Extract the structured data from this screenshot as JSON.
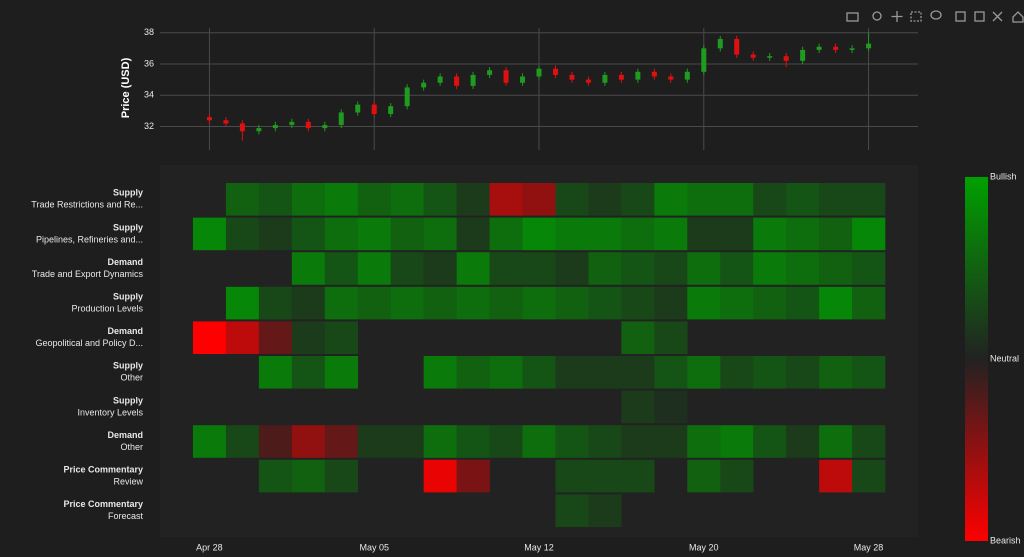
{
  "chart_data": [
    {
      "type": "candlestick",
      "y_label": "Price (USD)",
      "x": [
        0,
        0.5,
        1,
        1.5,
        2,
        2.5,
        3,
        3.5,
        4,
        4.5,
        5,
        5.5,
        6,
        6.5,
        7,
        7.5,
        8,
        8.5,
        9,
        9.5,
        10,
        10.5,
        11,
        11.5,
        12,
        12.5,
        13,
        13.5,
        14,
        14.5,
        15,
        15.5,
        16,
        16.5,
        17,
        17.5,
        18,
        18.5,
        19,
        19.5,
        20
      ],
      "open": [
        32.6,
        32.4,
        32.2,
        31.7,
        31.9,
        32.1,
        32.3,
        31.9,
        32.1,
        32.9,
        33.4,
        32.8,
        33.3,
        34.5,
        34.8,
        35.2,
        34.6,
        35.3,
        35.6,
        34.8,
        35.2,
        35.7,
        35.3,
        35.0,
        34.8,
        35.3,
        35.0,
        35.5,
        35.2,
        35.0,
        35.5,
        37.0,
        37.6,
        36.6,
        36.4,
        36.5,
        36.2,
        36.9,
        37.1,
        36.9,
        37.0
      ],
      "high": [
        32.8,
        32.6,
        32.4,
        32.1,
        32.3,
        32.5,
        32.5,
        32.3,
        33.1,
        33.6,
        33.6,
        33.5,
        34.7,
        35.0,
        35.4,
        35.4,
        35.5,
        35.8,
        35.8,
        35.4,
        35.9,
        35.9,
        35.5,
        35.2,
        35.5,
        35.5,
        35.7,
        35.7,
        35.4,
        35.7,
        37.2,
        37.8,
        37.8,
        36.8,
        36.7,
        36.7,
        37.1,
        37.3,
        37.3,
        37.2,
        38.0
      ],
      "low": [
        32.2,
        32.0,
        31.1,
        31.5,
        31.7,
        31.9,
        31.7,
        31.7,
        31.9,
        32.7,
        32.6,
        32.6,
        33.1,
        34.3,
        34.6,
        34.4,
        34.4,
        35.1,
        34.6,
        34.6,
        35.0,
        35.1,
        34.8,
        34.6,
        34.6,
        34.8,
        34.8,
        35.0,
        34.8,
        34.8,
        35.3,
        36.8,
        36.4,
        36.2,
        36.2,
        35.8,
        36.0,
        36.7,
        36.7,
        36.7,
        36.8
      ],
      "close": [
        32.4,
        32.2,
        31.7,
        31.9,
        32.1,
        32.3,
        31.9,
        32.1,
        32.9,
        33.4,
        32.8,
        33.3,
        34.5,
        34.8,
        35.2,
        34.6,
        35.3,
        35.6,
        34.8,
        35.2,
        35.7,
        35.3,
        35.0,
        34.8,
        35.3,
        35.0,
        35.5,
        35.2,
        35.0,
        35.5,
        37.0,
        37.6,
        36.6,
        36.4,
        36.5,
        36.2,
        36.9,
        37.1,
        36.9,
        37.0,
        37.3
      ],
      "increasing_color": "#1f9b1f",
      "decreasing_color": "#e01010",
      "xlim": [
        -1.5,
        21.5
      ],
      "ylim": [
        30.5,
        38.3
      ],
      "yticks": [
        32,
        34,
        36,
        38
      ],
      "grid": true
    },
    {
      "type": "heatmap",
      "x": [
        0,
        1,
        2,
        3,
        4,
        5,
        6,
        7,
        8,
        9,
        10,
        11,
        12,
        13,
        14,
        15,
        16,
        17,
        18,
        19,
        20
      ],
      "y": [
        [
          "Supply",
          "Trade Restrictions and Re..."
        ],
        [
          "Supply",
          "Pipelines, Refineries and..."
        ],
        [
          "Demand",
          "Trade and Export Dynamics"
        ],
        [
          "Supply",
          "Production Levels"
        ],
        [
          "Demand",
          "Geopolitical and Policy D..."
        ],
        [
          "Supply",
          "Other"
        ],
        [
          "Supply",
          "Inventory Levels"
        ],
        [
          "Demand",
          "Other"
        ],
        [
          "Price Commentary",
          "Review"
        ],
        [
          "Price Commentary",
          "Forecast"
        ]
      ],
      "z": [
        [
          null,
          0.5,
          0.4,
          0.6,
          0.7,
          0.5,
          0.6,
          0.4,
          0.2,
          -0.6,
          -0.5,
          0.3,
          0.2,
          0.3,
          0.7,
          0.6,
          0.6,
          0.3,
          0.4,
          0.3,
          0.3
        ],
        [
          0.8,
          0.3,
          0.2,
          0.4,
          0.6,
          0.7,
          0.5,
          0.6,
          0.2,
          0.6,
          0.8,
          0.7,
          0.7,
          0.6,
          0.7,
          0.2,
          0.2,
          0.7,
          0.6,
          0.5,
          0.8
        ],
        [
          null,
          null,
          null,
          0.7,
          0.4,
          0.7,
          0.3,
          0.2,
          0.7,
          0.3,
          0.3,
          0.2,
          0.5,
          0.4,
          0.3,
          0.6,
          0.4,
          0.7,
          0.6,
          0.5,
          0.4
        ],
        [
          null,
          0.8,
          0.3,
          0.2,
          0.6,
          0.5,
          0.6,
          0.5,
          0.6,
          0.5,
          0.6,
          0.5,
          0.4,
          0.3,
          0.2,
          0.7,
          0.6,
          0.5,
          0.4,
          0.8,
          0.5
        ],
        [
          -1.0,
          -0.7,
          -0.3,
          0.2,
          0.3,
          null,
          null,
          null,
          null,
          null,
          null,
          null,
          null,
          0.5,
          0.3,
          null,
          null,
          null,
          null,
          null,
          null
        ],
        [
          null,
          null,
          0.7,
          0.4,
          0.7,
          null,
          null,
          0.7,
          0.5,
          0.6,
          0.4,
          0.2,
          0.2,
          0.2,
          0.4,
          0.6,
          0.3,
          0.4,
          0.3,
          0.5,
          0.4
        ],
        [
          null,
          null,
          null,
          null,
          null,
          null,
          null,
          null,
          null,
          null,
          null,
          null,
          null,
          0.2,
          0.1,
          null,
          null,
          null,
          null,
          null,
          null
        ],
        [
          0.7,
          0.3,
          -0.2,
          -0.5,
          -0.3,
          0.2,
          0.2,
          0.6,
          0.4,
          0.3,
          0.6,
          0.4,
          0.3,
          0.2,
          0.2,
          0.6,
          0.7,
          0.4,
          0.2,
          0.6,
          0.3
        ],
        [
          null,
          null,
          0.4,
          0.5,
          0.3,
          null,
          null,
          -0.9,
          -0.4,
          null,
          null,
          0.3,
          0.3,
          0.3,
          null,
          0.5,
          0.3,
          null,
          null,
          -0.7,
          0.3
        ],
        [
          null,
          null,
          null,
          null,
          null,
          null,
          null,
          null,
          null,
          null,
          null,
          0.3,
          0.2,
          null,
          null,
          null,
          null,
          null,
          null,
          null,
          null
        ]
      ],
      "xlim": [
        -1.5,
        21.5
      ],
      "xticks": [
        {
          "value": 0,
          "label": "Apr 28"
        },
        {
          "value": 5,
          "label": "May 05"
        },
        {
          "value": 10,
          "label": "May 12"
        },
        {
          "value": 15,
          "label": "May 20"
        },
        {
          "value": 20,
          "label": "May 28"
        }
      ],
      "zlim": [
        -1,
        1
      ],
      "colorscale": [
        "#ff0000",
        "#222222",
        "#00a000"
      ],
      "colorbar_ticks": [
        {
          "value": 1,
          "label": "Bullish"
        },
        {
          "value": 0,
          "label": "Neutral"
        },
        {
          "value": -1,
          "label": "Bearish"
        }
      ]
    }
  ]
}
